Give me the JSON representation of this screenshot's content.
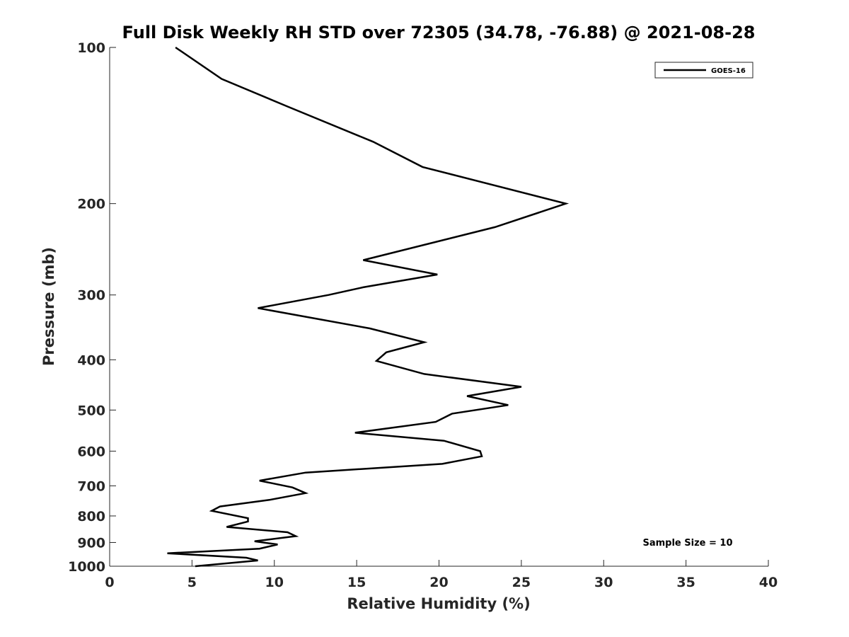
{
  "chart_data": {
    "type": "line",
    "title": "Full Disk Weekly RH STD over 72305 (34.78, -76.88) @ 2021-08-28",
    "xlabel": "Relative Humidity (%)",
    "ylabel": "Pressure (mb)",
    "xlim": [
      0,
      40
    ],
    "ylim": [
      100,
      1000
    ],
    "y_scale": "log",
    "y_reversed": true,
    "x_ticks": [
      "0",
      "5",
      "10",
      "15",
      "20",
      "25",
      "30",
      "35",
      "40"
    ],
    "y_ticks": [
      "100",
      "200",
      "300",
      "400",
      "500",
      "600",
      "700",
      "800",
      "900",
      "1000"
    ],
    "legend": {
      "position": "top-right",
      "entries": [
        "GOES-16"
      ]
    },
    "annotation": "Sample Size = 10",
    "grid": false,
    "series": [
      {
        "name": "GOES-16",
        "color": "#000000",
        "points": [
          [
            4.0,
            100
          ],
          [
            6.8,
            115
          ],
          [
            10.8,
            130
          ],
          [
            16.0,
            152
          ],
          [
            19.0,
            170
          ],
          [
            27.7,
            200
          ],
          [
            23.4,
            222
          ],
          [
            15.4,
            257
          ],
          [
            19.9,
            274
          ],
          [
            15.4,
            290
          ],
          [
            13.3,
            300
          ],
          [
            9.0,
            318
          ],
          [
            15.8,
            348
          ],
          [
            19.1,
            370
          ],
          [
            16.8,
            387
          ],
          [
            16.2,
            402
          ],
          [
            19.1,
            426
          ],
          [
            25.0,
            451
          ],
          [
            21.7,
            470
          ],
          [
            24.2,
            489
          ],
          [
            20.8,
            508
          ],
          [
            19.8,
            527
          ],
          [
            14.9,
            553
          ],
          [
            20.3,
            573
          ],
          [
            22.5,
            600
          ],
          [
            22.6,
            614
          ],
          [
            20.2,
            635
          ],
          [
            11.9,
            660
          ],
          [
            9.1,
            684
          ],
          [
            11.1,
            705
          ],
          [
            11.9,
            723
          ],
          [
            9.7,
            745
          ],
          [
            6.7,
            767
          ],
          [
            6.2,
            782
          ],
          [
            8.4,
            808
          ],
          [
            8.4,
            820
          ],
          [
            7.1,
            840
          ],
          [
            10.8,
            860
          ],
          [
            11.3,
            875
          ],
          [
            8.8,
            895
          ],
          [
            10.2,
            908
          ],
          [
            9.1,
            925
          ],
          [
            3.5,
            944
          ],
          [
            8.3,
            963
          ],
          [
            9.0,
            975
          ],
          [
            5.2,
            1000
          ]
        ]
      }
    ]
  }
}
